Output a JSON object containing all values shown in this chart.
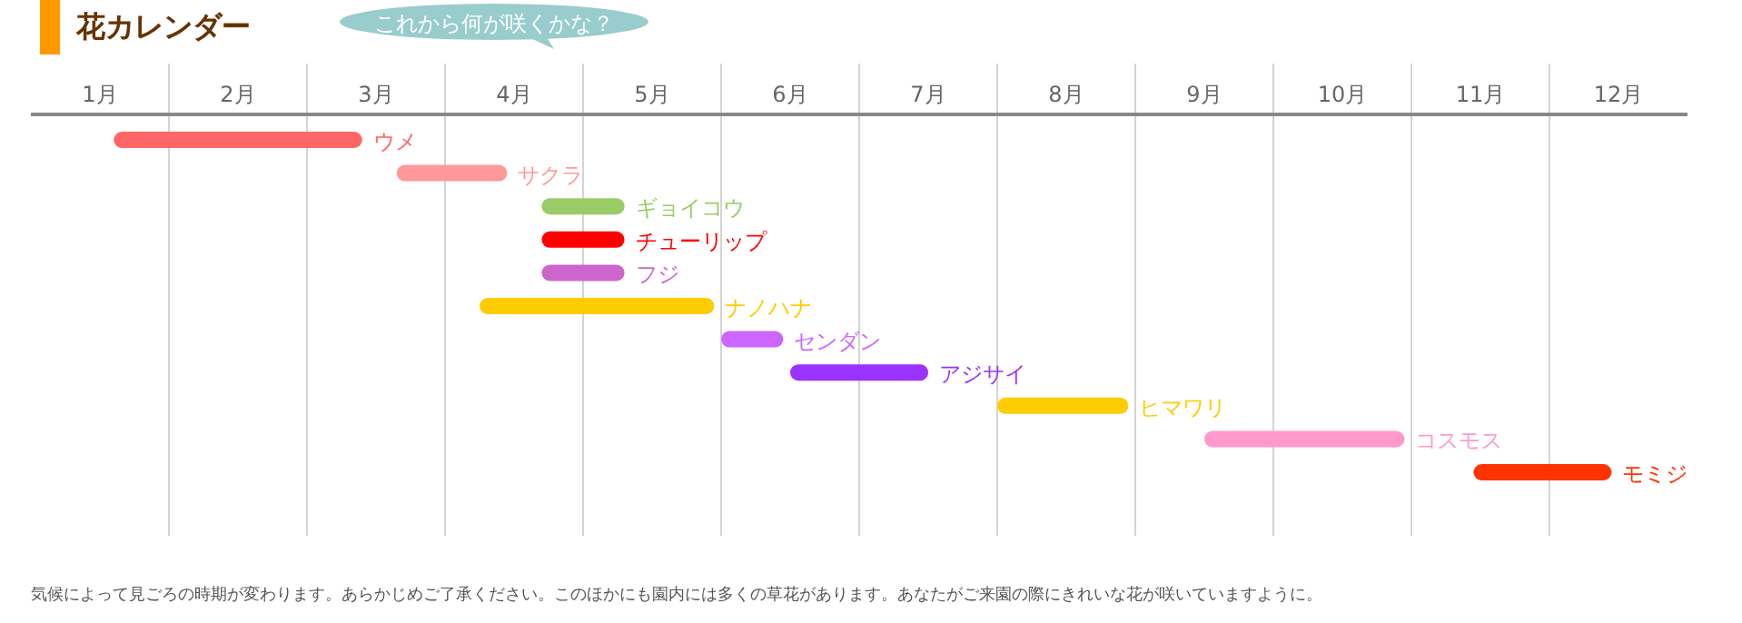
{
  "chart_data": {
    "type": "bar",
    "orientation": "horizontal",
    "title": "花カレンダー",
    "subtitle": "これから何が咲くかな？",
    "categories": [
      "ウメ",
      "サクラ",
      "ギョイコウ",
      "チューリップ",
      "フジ",
      "ナノハナ",
      "センダン",
      "アジサイ",
      "ヒマワリ",
      "コスモス",
      "モミジ"
    ],
    "base": [
      1.6,
      3.65,
      4.7,
      4.7,
      4.7,
      4.25,
      6.0,
      6.5,
      8.0,
      9.5,
      11.45
    ],
    "values": [
      1.8,
      0.8,
      0.6,
      0.6,
      0.6,
      1.7,
      0.45,
      1.0,
      0.95,
      1.45,
      1.0
    ],
    "colors": [
      "#ff6666",
      "#ff9999",
      "#99cc66",
      "#ff0000",
      "#cc66cc",
      "#ffcc00",
      "#cc66ff",
      "#9933ff",
      "#ffcc00",
      "#ff99cc",
      "#ff3300"
    ],
    "xlim": [
      1,
      13
    ],
    "xticks": [
      {
        "value": 1.5,
        "label": "1月"
      },
      {
        "value": 2.5,
        "label": "2月"
      },
      {
        "value": 3.5,
        "label": "3月"
      },
      {
        "value": 4.5,
        "label": "4月"
      },
      {
        "value": 5.5,
        "label": "5月"
      },
      {
        "value": 6.5,
        "label": "6月"
      },
      {
        "value": 7.5,
        "label": "7月"
      },
      {
        "value": 8.5,
        "label": "8月"
      },
      {
        "value": 9.5,
        "label": "9月"
      },
      {
        "value": 10.5,
        "label": "10月"
      },
      {
        "value": 11.5,
        "label": "11月"
      },
      {
        "value": 12.5,
        "label": "12月"
      },
      {
        "value": 2,
        "label": null
      },
      {
        "value": 3,
        "label": null
      },
      {
        "value": 4,
        "label": null
      },
      {
        "value": 5,
        "label": null
      },
      {
        "value": 6,
        "label": null
      },
      {
        "value": 7,
        "label": null
      },
      {
        "value": 8,
        "label": null
      },
      {
        "value": 9,
        "label": null
      },
      {
        "value": 10,
        "label": null
      },
      {
        "value": 11,
        "label": null
      },
      {
        "value": 12,
        "label": null
      }
    ],
    "grid": "x",
    "annotations": [
      "気候によって見ごろの時期が変わります。あらかじめご了承ください。このほかにも園内には多くの草花があります。あなたがご来園の際にきれいな花が咲いていますように。"
    ]
  }
}
